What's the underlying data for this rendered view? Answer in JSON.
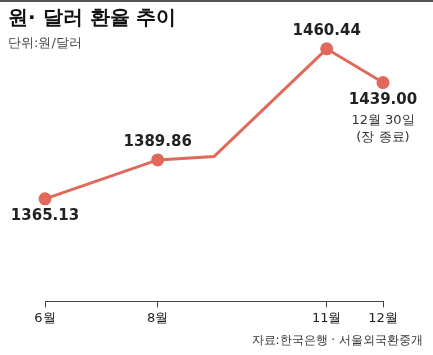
{
  "chart_data": {
    "type": "line",
    "title": "원· 달러 환율 추이",
    "subtitle": "단위:원/달러",
    "source": "자료:한국은행 · 서울외국환중개",
    "categories": [
      "6월",
      null,
      "8월",
      null,
      null,
      "11월",
      "12월"
    ],
    "values": [
      1365.13,
      null,
      1389.86,
      1392,
      null,
      1460.44,
      1439.0
    ],
    "value_labels": [
      "1365.13",
      null,
      "1389.86",
      null,
      null,
      "1460.44",
      "1439.00"
    ],
    "data_labels": true,
    "annotations": [
      "12월 30일",
      "(장 종료)"
    ],
    "color": "#e0695a",
    "marker": "circle",
    "ylim": [
      1300,
      1480
    ],
    "grid": false,
    "tick_labels": "x"
  }
}
